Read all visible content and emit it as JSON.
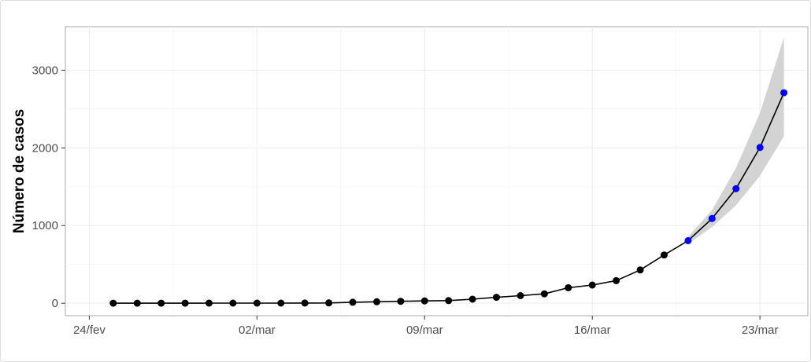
{
  "chart_data": {
    "type": "line",
    "title": "",
    "xlabel": "",
    "ylabel": "Número de casos",
    "x_tick_labels": [
      "24/fev",
      "02/mar",
      "09/mar",
      "16/mar",
      "23/mar"
    ],
    "x_ticks": [
      "2020-02-24",
      "2020-03-02",
      "2020-03-09",
      "2020-03-16",
      "2020-03-23"
    ],
    "y_ticks": [
      0,
      1000,
      2000,
      3000
    ],
    "xlim": [
      "2020-02-23",
      "2020-03-25"
    ],
    "ylim": [
      -160,
      3560
    ],
    "grid": true,
    "legend": "none",
    "series": [
      {
        "color": "#000000",
        "x": [
          "2020-02-25",
          "2020-02-26",
          "2020-02-27",
          "2020-02-28",
          "2020-02-29",
          "2020-03-01",
          "2020-03-02",
          "2020-03-03",
          "2020-03-04",
          "2020-03-05",
          "2020-03-06",
          "2020-03-07",
          "2020-03-08",
          "2020-03-09",
          "2020-03-10",
          "2020-03-11",
          "2020-03-12",
          "2020-03-13",
          "2020-03-14",
          "2020-03-15",
          "2020-03-16",
          "2020-03-17",
          "2020-03-18",
          "2020-03-19"
        ],
        "values": [
          1,
          1,
          1,
          1,
          2,
          2,
          2,
          2,
          3,
          4,
          13,
          19,
          25,
          30,
          34,
          52,
          77,
          98,
          121,
          200,
          234,
          291,
          428,
          621
        ]
      },
      {
        "color": "#0000ff",
        "x": [
          "2020-03-20",
          "2020-03-21",
          "2020-03-22",
          "2020-03-23",
          "2020-03-24"
        ],
        "values": [
          805,
          1090,
          1475,
          2005,
          2710
        ],
        "lower": [
          765,
          980,
          1260,
          1640,
          2150
        ],
        "upper": [
          855,
          1200,
          1740,
          2450,
          3420
        ]
      }
    ]
  }
}
